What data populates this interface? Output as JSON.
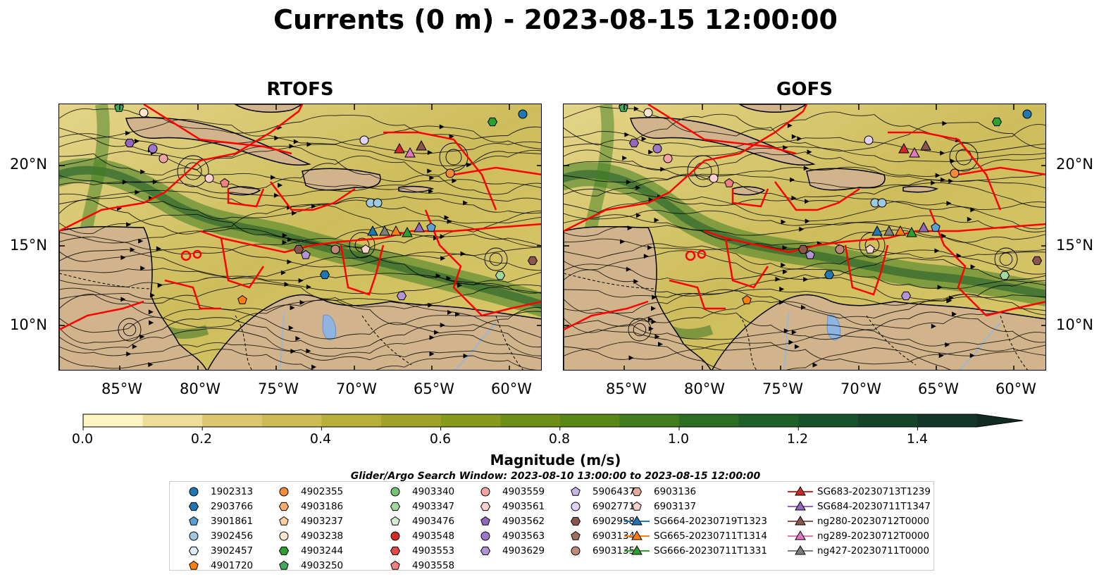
{
  "title": "Currents (0 m) - 2023-08-15 12:00:00",
  "panels": [
    {
      "title": "RTOFS"
    },
    {
      "title": "GOFS"
    }
  ],
  "lat_labels": [
    "20°N",
    "15°N",
    "10°N"
  ],
  "lon_labels": [
    "85°W",
    "80°W",
    "75°W",
    "70°W",
    "65°W",
    "60°W"
  ],
  "colorbar": {
    "label": "Magnitude (m/s)",
    "ticks": [
      "0.0",
      "0.2",
      "0.4",
      "0.6",
      "0.8",
      "1.0",
      "1.2",
      "1.4"
    ],
    "colors": [
      "#fdf6c2",
      "#eedd98",
      "#dcc670",
      "#ccba52",
      "#b8ae3a",
      "#a0a22a",
      "#879a1c",
      "#6e9016",
      "#578818",
      "#427c1e",
      "#2e6e22",
      "#1f6028",
      "#17522a",
      "#14452a",
      "#133628",
      "#112a22"
    ]
  },
  "search_window": "Glider/Argo Search Window: 2023-08-10 13:00:00 to 2023-08-15 12:00:00",
  "legend": {
    "columns": [
      [
        {
          "label": "1902313",
          "marker": "circle",
          "color": "#1f77b4"
        },
        {
          "label": "2903766",
          "marker": "hexagon",
          "color": "#1f77b4"
        },
        {
          "label": "3901861",
          "marker": "pentagon",
          "color": "#5b9fd3"
        },
        {
          "label": "3902456",
          "marker": "circle",
          "color": "#9ecae1"
        },
        {
          "label": "3902457",
          "marker": "hexagon",
          "color": "#deebf7"
        },
        {
          "label": "4901720",
          "marker": "pentagon",
          "color": "#ff7f0e"
        }
      ],
      [
        {
          "label": "4902355",
          "marker": "circle",
          "color": "#f28c38"
        },
        {
          "label": "4903186",
          "marker": "hexagon",
          "color": "#fdae6b"
        },
        {
          "label": "4903237",
          "marker": "pentagon",
          "color": "#fdd0a2"
        },
        {
          "label": "4903238",
          "marker": "circle",
          "color": "#fee6ce"
        },
        {
          "label": "4903244",
          "marker": "hexagon",
          "color": "#2ca02c"
        },
        {
          "label": "4903250",
          "marker": "pentagon",
          "color": "#41ab5d"
        }
      ],
      [
        {
          "label": "4903340",
          "marker": "circle",
          "color": "#74c476"
        },
        {
          "label": "4903347",
          "marker": "hexagon",
          "color": "#a1d99b"
        },
        {
          "label": "4903476",
          "marker": "pentagon",
          "color": "#d9f0d3"
        },
        {
          "label": "4903548",
          "marker": "circle",
          "color": "#d62728"
        },
        {
          "label": "4903553",
          "marker": "hexagon",
          "color": "#e0484a"
        },
        {
          "label": "4903558",
          "marker": "pentagon",
          "color": "#f28080"
        }
      ],
      [
        {
          "label": "4903559",
          "marker": "circle",
          "color": "#f4a3a3"
        },
        {
          "label": "4903561",
          "marker": "hexagon",
          "color": "#fcd0d0"
        },
        {
          "label": "4903562",
          "marker": "pentagon",
          "color": "#9467bd"
        },
        {
          "label": "4903563",
          "marker": "circle",
          "color": "#9e77c8"
        },
        {
          "label": "4903629",
          "marker": "hexagon",
          "color": "#b294d6"
        }
      ],
      [
        {
          "label": "5906437",
          "marker": "pentagon",
          "color": "#cbb4ea"
        },
        {
          "label": "6902771",
          "marker": "circle",
          "color": "#e2d2f5"
        },
        {
          "label": "6902958",
          "marker": "hexagon",
          "color": "#8c564b"
        },
        {
          "label": "6903134",
          "marker": "pentagon",
          "color": "#a0705f"
        },
        {
          "label": "6903135",
          "marker": "circle",
          "color": "#c08a78"
        }
      ],
      [
        {
          "label": "6903136",
          "marker": "hexagon",
          "color": "#e0ad9c"
        },
        {
          "label": "6903137",
          "marker": "pentagon",
          "color": "#f6d3c8"
        },
        {
          "label": "SG664-20230719T1323",
          "marker": "triangle-line",
          "color": "#1f77b4"
        },
        {
          "label": "SG665-20230711T1314",
          "marker": "triangle-line",
          "color": "#ff7f0e"
        },
        {
          "label": "SG666-20230711T1331",
          "marker": "triangle-line",
          "color": "#2ca02c"
        }
      ],
      [
        {
          "label": "SG683-20230713T1239",
          "marker": "triangle-line",
          "color": "#d62728"
        },
        {
          "label": "SG684-20230711T1347",
          "marker": "triangle-line",
          "color": "#9467bd"
        },
        {
          "label": "ng280-20230712T0000",
          "marker": "triangle-line",
          "color": "#8c564b"
        },
        {
          "label": "ng289-20230712T0000",
          "marker": "triangle-line",
          "color": "#e377c2"
        },
        {
          "label": "ng427-20230711T0000",
          "marker": "triangle-line",
          "color": "#7f7f7f"
        }
      ]
    ]
  }
}
